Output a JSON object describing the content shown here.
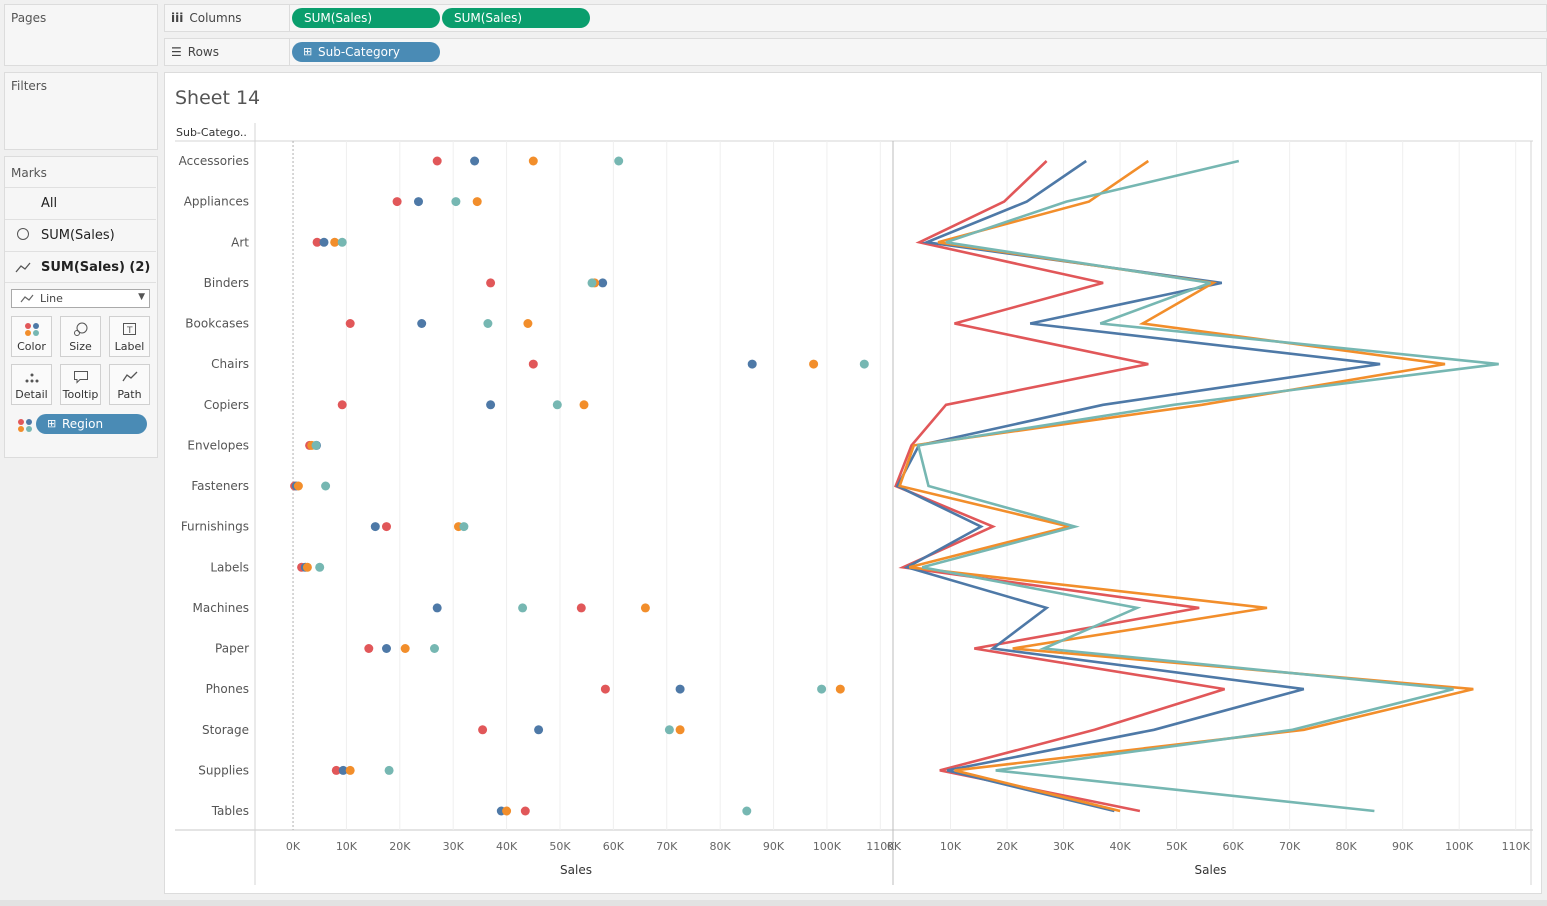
{
  "pages": {
    "title": "Pages"
  },
  "filters": {
    "title": "Filters"
  },
  "columns_shelf": {
    "label": "Columns",
    "pills": [
      "SUM(Sales)",
      "SUM(Sales)"
    ]
  },
  "rows_shelf": {
    "label": "Rows",
    "pills": [
      "Sub-Category"
    ]
  },
  "marks": {
    "title": "Marks",
    "all_label": "All",
    "card1_label": "SUM(Sales)",
    "card2_label": "SUM(Sales) (2)",
    "mark_type": "Line",
    "buttons": [
      "Color",
      "Size",
      "Label",
      "Detail",
      "Tooltip",
      "Path"
    ],
    "color_pill": "Region"
  },
  "sheet": {
    "title": "Sheet 14",
    "row_header": "Sub-Catego.."
  },
  "colors": {
    "Central": "#e15759",
    "East": "#4e79a7",
    "South": "#f28e2b",
    "West": "#76b7b2"
  },
  "chart_data": [
    {
      "type": "scatter",
      "categories": [
        "Accessories",
        "Appliances",
        "Art",
        "Binders",
        "Bookcases",
        "Chairs",
        "Copiers",
        "Envelopes",
        "Fasteners",
        "Furnishings",
        "Labels",
        "Machines",
        "Paper",
        "Phones",
        "Storage",
        "Supplies",
        "Tables"
      ],
      "series": [
        {
          "color": "#e15759",
          "values": [
            27000,
            19500,
            4500,
            37000,
            10700,
            45000,
            9200,
            3100,
            300,
            17500,
            1600,
            54000,
            14200,
            58500,
            35500,
            8100,
            43500
          ]
        },
        {
          "color": "#4e79a7",
          "values": [
            34000,
            23500,
            5800,
            58000,
            24100,
            86000,
            37000,
            4400,
            600,
            15400,
            2300,
            27000,
            17500,
            72500,
            46000,
            9400,
            39000
          ]
        },
        {
          "color": "#f28e2b",
          "values": [
            45000,
            34500,
            7800,
            56500,
            44000,
            97500,
            54500,
            3500,
            1000,
            31000,
            2700,
            66000,
            21000,
            102500,
            72500,
            10700,
            40000
          ]
        },
        {
          "color": "#76b7b2",
          "values": [
            61000,
            30500,
            9200,
            56000,
            36500,
            107000,
            49500,
            4300,
            6100,
            32000,
            5000,
            43000,
            26500,
            99000,
            70500,
            18000,
            85000
          ]
        }
      ],
      "xlabel": "Sales",
      "xlim": [
        -6000,
        112000
      ],
      "xticks": [
        "0K",
        "10K",
        "20K",
        "30K",
        "40K",
        "50K",
        "60K",
        "70K",
        "80K",
        "90K",
        "100K",
        "110K"
      ]
    },
    {
      "type": "line",
      "categories": [
        "Accessories",
        "Appliances",
        "Art",
        "Binders",
        "Bookcases",
        "Chairs",
        "Copiers",
        "Envelopes",
        "Fasteners",
        "Furnishings",
        "Labels",
        "Machines",
        "Paper",
        "Phones",
        "Storage",
        "Supplies",
        "Tables"
      ],
      "series": [
        {
          "color": "#e15759",
          "values": [
            27000,
            19500,
            4500,
            37000,
            10700,
            45000,
            9200,
            3100,
            300,
            17500,
            1600,
            54000,
            14200,
            58500,
            35500,
            8100,
            43500
          ]
        },
        {
          "color": "#4e79a7",
          "values": [
            34000,
            23500,
            5800,
            58000,
            24100,
            86000,
            37000,
            4400,
            600,
            15400,
            2300,
            27000,
            17500,
            72500,
            46000,
            9400,
            39000
          ]
        },
        {
          "color": "#f28e2b",
          "values": [
            45000,
            34500,
            7800,
            56500,
            44000,
            97500,
            54500,
            3500,
            1000,
            31000,
            2700,
            66000,
            21000,
            102500,
            72500,
            10700,
            40000
          ]
        },
        {
          "color": "#76b7b2",
          "values": [
            61000,
            30500,
            9200,
            56000,
            36500,
            107000,
            49500,
            4300,
            6100,
            32000,
            5000,
            43000,
            26500,
            99000,
            70500,
            18000,
            85000
          ]
        }
      ],
      "xlabel": "Sales",
      "xlim": [
        0,
        112000
      ],
      "xticks": [
        "0K",
        "10K",
        "20K",
        "30K",
        "40K",
        "50K",
        "60K",
        "70K",
        "80K",
        "90K",
        "100K",
        "110K"
      ]
    }
  ]
}
